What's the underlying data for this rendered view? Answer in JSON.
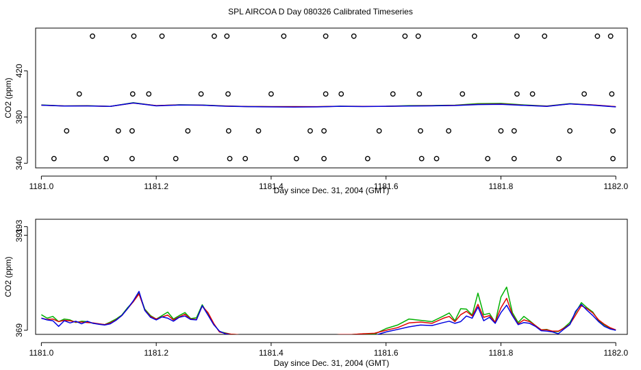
{
  "figure": {
    "title": "SPL AIRCOA D  Day 080326  Calibrated Timeseries"
  },
  "colors": {
    "red": "#e00000",
    "green": "#00b000",
    "blue": "#0000e0",
    "axis": "#000000"
  },
  "chart_data": [
    {
      "type": "line",
      "panel": "top",
      "title": "SPL AIRCOA D  Day 080326  Calibrated Timeseries",
      "xlabel": "Day since Dec. 31, 2004 (GMT)",
      "ylabel": "CO2 (ppm)",
      "xlim": [
        1180.99,
        1182.02
      ],
      "ylim": [
        336,
        457
      ],
      "xticks": [
        1181.0,
        1181.2,
        1181.4,
        1181.6,
        1181.8,
        1182.0
      ],
      "xtick_labels": [
        "1181.0",
        "1181.2",
        "1181.4",
        "1181.6",
        "1181.8",
        "1182.0"
      ],
      "yticks": [
        340,
        380,
        420
      ],
      "ytick_labels": [
        "340",
        "380",
        "420"
      ],
      "legend": "none",
      "series": [
        {
          "name": "green",
          "color": "green",
          "x": [
            1181.0,
            1181.04,
            1181.08,
            1181.12,
            1181.16,
            1181.2,
            1181.24,
            1181.28,
            1181.32,
            1181.36,
            1181.4,
            1181.44,
            1181.48,
            1181.52,
            1181.56,
            1181.6,
            1181.64,
            1181.68,
            1181.72,
            1181.76,
            1181.8,
            1181.84,
            1181.88,
            1181.92,
            1181.96,
            1182.0
          ],
          "y": [
            390.5,
            389.6,
            389.8,
            389.2,
            392.4,
            389.8,
            390.6,
            390.4,
            389.6,
            389.1,
            389.0,
            389.0,
            388.9,
            389.4,
            389.2,
            389.3,
            389.9,
            390.0,
            390.3,
            391.6,
            391.8,
            390.5,
            389.5,
            391.6,
            390.4,
            388.9
          ]
        },
        {
          "name": "red",
          "color": "red",
          "x": [
            1181.0,
            1181.04,
            1181.08,
            1181.12,
            1181.16,
            1181.2,
            1181.24,
            1181.28,
            1181.32,
            1181.36,
            1181.4,
            1181.44,
            1181.48,
            1181.52,
            1181.56,
            1181.6,
            1181.64,
            1181.68,
            1181.72,
            1181.76,
            1181.8,
            1181.84,
            1181.88,
            1181.92,
            1181.96,
            1182.0
          ],
          "y": [
            390.3,
            389.6,
            389.7,
            389.2,
            392.1,
            389.9,
            390.5,
            390.3,
            389.5,
            389.1,
            389.0,
            389.0,
            389.0,
            389.3,
            389.2,
            389.3,
            389.6,
            389.8,
            390.1,
            391.0,
            391.3,
            390.2,
            389.4,
            391.4,
            390.5,
            389.0
          ]
        },
        {
          "name": "blue",
          "color": "blue",
          "x": [
            1181.0,
            1181.04,
            1181.08,
            1181.12,
            1181.16,
            1181.2,
            1181.24,
            1181.28,
            1181.32,
            1181.36,
            1181.4,
            1181.44,
            1181.48,
            1181.52,
            1181.56,
            1181.6,
            1181.64,
            1181.68,
            1181.72,
            1181.76,
            1181.8,
            1181.84,
            1181.88,
            1181.92,
            1181.96,
            1182.0
          ],
          "y": [
            390.3,
            389.5,
            389.6,
            389.2,
            392.2,
            389.7,
            390.4,
            390.3,
            389.4,
            389.0,
            388.8,
            388.7,
            388.8,
            389.3,
            389.1,
            389.3,
            389.5,
            389.7,
            390.0,
            390.8,
            391.0,
            390.1,
            389.2,
            391.4,
            390.3,
            388.8
          ]
        }
      ],
      "scatter": {
        "name": "circles",
        "x": [
          1181.022,
          1181.113,
          1181.158,
          1181.234,
          1181.328,
          1181.355,
          1181.444,
          1181.492,
          1181.568,
          1181.662,
          1181.688,
          1181.777,
          1181.823,
          1181.901,
          1181.995,
          1181.044,
          1181.134,
          1181.158,
          1181.255,
          1181.326,
          1181.378,
          1181.468,
          1181.492,
          1181.588,
          1181.66,
          1181.709,
          1181.8,
          1181.823,
          1181.92,
          1181.995,
          1181.066,
          1181.159,
          1181.187,
          1181.278,
          1181.325,
          1181.4,
          1181.495,
          1181.522,
          1181.612,
          1181.658,
          1181.733,
          1181.828,
          1181.855,
          1181.945,
          1181.993,
          1181.089,
          1181.161,
          1181.21,
          1181.301,
          1181.323,
          1181.422,
          1181.495,
          1181.544,
          1181.633,
          1181.656,
          1181.754,
          1181.828,
          1181.876,
          1181.968,
          1181.991
        ],
        "y": [
          344,
          344,
          344,
          344,
          344,
          344,
          344,
          344,
          344,
          344,
          344,
          344,
          344,
          344,
          344,
          368,
          368,
          368,
          368,
          368,
          368,
          368,
          368,
          368,
          368,
          368,
          368,
          368,
          368,
          368,
          400,
          400,
          400,
          400,
          400,
          400,
          400,
          400,
          400,
          400,
          400,
          400,
          400,
          400,
          400,
          450,
          450,
          450,
          450,
          450,
          450,
          450,
          450,
          450,
          450,
          450,
          450,
          450,
          450,
          450
        ]
      }
    },
    {
      "type": "line",
      "panel": "bottom",
      "xlabel": "Day since Dec. 31, 2004 (GMT)",
      "ylabel": "CO2 (ppm)",
      "xlim": [
        1180.99,
        1182.02
      ],
      "ylim": [
        368.05,
        394.7
      ],
      "xticks": [
        1181.0,
        1181.2,
        1181.4,
        1181.6,
        1181.8,
        1182.0
      ],
      "xtick_labels": [
        "1181.0",
        "1181.2",
        "1181.4",
        "1181.6",
        "1181.8",
        "1182.0"
      ],
      "yticks": [
        369,
        391,
        393
      ],
      "ytick_labels": [
        "369",
        "391",
        "393"
      ],
      "legend": "none",
      "series": [
        {
          "name": "green",
          "color": "green",
          "x": [
            1181.0,
            1181.01,
            1181.02,
            1181.03,
            1181.04,
            1181.05,
            1181.06,
            1181.07,
            1181.08,
            1181.09,
            1181.1,
            1181.11,
            1181.12,
            1181.13,
            1181.14,
            1181.15,
            1181.16,
            1181.17,
            1181.18,
            1181.19,
            1181.2,
            1181.21,
            1181.22,
            1181.23,
            1181.24,
            1181.25,
            1181.26,
            1181.27,
            1181.28,
            1181.29,
            1181.3,
            1181.31,
            1181.32,
            1181.33,
            1181.34,
            1181.36,
            1181.38,
            1181.4,
            1181.42,
            1181.44,
            1181.46,
            1181.48,
            1181.5,
            1181.52,
            1181.54,
            1181.56,
            1181.58,
            1181.6,
            1181.62,
            1181.64,
            1181.66,
            1181.68,
            1181.7,
            1181.71,
            1181.72,
            1181.73,
            1181.74,
            1181.75,
            1181.76,
            1181.77,
            1181.78,
            1181.79,
            1181.8,
            1181.81,
            1181.82,
            1181.83,
            1181.84,
            1181.85,
            1181.86,
            1181.87,
            1181.88,
            1181.89,
            1181.9,
            1181.91,
            1181.92,
            1181.93,
            1181.94,
            1181.95,
            1181.96,
            1181.97,
            1181.98,
            1181.99,
            1182.0
          ],
          "y": [
            372.6,
            371.8,
            372.2,
            371.0,
            371.6,
            371.4,
            370.8,
            371.1,
            371.0,
            370.6,
            370.5,
            370.3,
            370.9,
            371.6,
            372.5,
            374.2,
            375.6,
            377.7,
            373.9,
            372.4,
            371.6,
            372.4,
            373.2,
            371.6,
            372.4,
            373.1,
            371.7,
            371.9,
            374.9,
            372.6,
            370.5,
            368.7,
            368.4,
            368.1,
            368.0,
            367.6,
            367.4,
            367.6,
            367.6,
            367.3,
            367.5,
            367.3,
            367.7,
            368.0,
            368.0,
            368.2,
            368.1,
            369.4,
            370.2,
            371.6,
            371.3,
            371.0,
            372.3,
            373.0,
            371.2,
            374.0,
            373.9,
            372.5,
            377.6,
            372.6,
            372.9,
            370.8,
            376.7,
            379.0,
            373.1,
            370.8,
            372.2,
            371.2,
            370.1,
            369.1,
            369.2,
            368.7,
            368.7,
            369.6,
            370.8,
            373.1,
            375.4,
            374.2,
            373.2,
            371.2,
            370.2,
            369.5,
            369.0
          ]
        },
        {
          "name": "red",
          "color": "red",
          "x": [
            1181.0,
            1181.01,
            1181.02,
            1181.03,
            1181.04,
            1181.05,
            1181.06,
            1181.07,
            1181.08,
            1181.09,
            1181.1,
            1181.11,
            1181.12,
            1181.13,
            1181.14,
            1181.15,
            1181.16,
            1181.17,
            1181.18,
            1181.19,
            1181.2,
            1181.21,
            1181.22,
            1181.23,
            1181.24,
            1181.25,
            1181.26,
            1181.27,
            1181.28,
            1181.29,
            1181.3,
            1181.31,
            1181.32,
            1181.33,
            1181.34,
            1181.36,
            1181.38,
            1181.4,
            1181.42,
            1181.44,
            1181.46,
            1181.48,
            1181.5,
            1181.52,
            1181.54,
            1181.56,
            1181.58,
            1181.6,
            1181.62,
            1181.64,
            1181.66,
            1181.68,
            1181.7,
            1181.71,
            1181.72,
            1181.73,
            1181.74,
            1181.75,
            1181.76,
            1181.77,
            1181.78,
            1181.79,
            1181.8,
            1181.81,
            1181.82,
            1181.83,
            1181.84,
            1181.85,
            1181.86,
            1181.87,
            1181.88,
            1181.89,
            1181.9,
            1181.91,
            1181.92,
            1181.93,
            1181.94,
            1181.95,
            1181.96,
            1181.97,
            1181.98,
            1181.99,
            1182.0
          ],
          "y": [
            371.8,
            371.5,
            371.6,
            371.0,
            371.3,
            371.2,
            370.9,
            370.9,
            370.8,
            370.7,
            370.5,
            370.3,
            370.7,
            371.4,
            372.4,
            374.0,
            375.6,
            377.4,
            373.7,
            372.2,
            371.6,
            372.1,
            372.5,
            371.4,
            372.1,
            372.7,
            371.6,
            371.5,
            374.6,
            373.1,
            370.6,
            368.6,
            368.3,
            368.1,
            368.0,
            367.7,
            367.6,
            367.8,
            367.6,
            367.6,
            367.7,
            367.5,
            367.8,
            368.0,
            368.0,
            368.2,
            368.3,
            369.0,
            369.6,
            370.7,
            370.9,
            370.6,
            371.8,
            372.2,
            371.0,
            372.6,
            373.4,
            372.3,
            375.0,
            372.0,
            372.4,
            370.9,
            374.2,
            376.4,
            372.6,
            370.5,
            371.4,
            371.0,
            370.1,
            369.1,
            369.1,
            368.8,
            368.8,
            369.5,
            370.4,
            372.5,
            374.7,
            374.0,
            373.0,
            371.4,
            370.4,
            369.6,
            369.1
          ]
        },
        {
          "name": "blue",
          "color": "blue",
          "x": [
            1181.0,
            1181.01,
            1181.02,
            1181.03,
            1181.04,
            1181.05,
            1181.06,
            1181.07,
            1181.08,
            1181.09,
            1181.1,
            1181.11,
            1181.12,
            1181.13,
            1181.14,
            1181.15,
            1181.16,
            1181.17,
            1181.18,
            1181.19,
            1181.2,
            1181.21,
            1181.22,
            1181.23,
            1181.24,
            1181.25,
            1181.26,
            1181.27,
            1181.28,
            1181.29,
            1181.3,
            1181.31,
            1181.32,
            1181.33,
            1181.34,
            1181.36,
            1181.38,
            1181.4,
            1181.42,
            1181.44,
            1181.46,
            1181.48,
            1181.5,
            1181.52,
            1181.54,
            1181.56,
            1181.58,
            1181.6,
            1181.62,
            1181.64,
            1181.66,
            1181.68,
            1181.7,
            1181.71,
            1181.72,
            1181.73,
            1181.74,
            1181.75,
            1181.76,
            1181.77,
            1181.78,
            1181.79,
            1181.8,
            1181.81,
            1181.82,
            1181.83,
            1181.84,
            1181.85,
            1181.86,
            1181.87,
            1181.88,
            1181.89,
            1181.9,
            1181.91,
            1181.92,
            1181.93,
            1181.94,
            1181.95,
            1181.96,
            1181.97,
            1181.98,
            1181.99,
            1182.0
          ],
          "y": [
            371.8,
            371.4,
            371.2,
            369.9,
            371.2,
            370.7,
            371.1,
            370.5,
            371.1,
            370.6,
            370.4,
            370.2,
            370.5,
            371.3,
            372.4,
            374.0,
            375.8,
            378.0,
            373.6,
            372.0,
            371.4,
            372.1,
            371.8,
            371.1,
            372.0,
            372.3,
            371.5,
            371.4,
            374.7,
            372.5,
            370.3,
            368.8,
            368.2,
            367.9,
            367.7,
            367.4,
            367.1,
            367.2,
            367.3,
            366.9,
            367.1,
            367.0,
            367.4,
            367.6,
            367.7,
            367.9,
            367.8,
            368.6,
            369.2,
            369.8,
            370.2,
            370.1,
            370.8,
            371.1,
            370.6,
            371.0,
            372.3,
            371.8,
            374.4,
            371.2,
            372.0,
            370.6,
            373.1,
            374.8,
            372.4,
            370.3,
            370.8,
            370.6,
            369.9,
            368.9,
            368.8,
            368.6,
            368.2,
            369.3,
            370.3,
            373.4,
            375.0,
            373.6,
            372.4,
            371.0,
            369.9,
            369.3,
            369.0
          ]
        }
      ]
    }
  ]
}
